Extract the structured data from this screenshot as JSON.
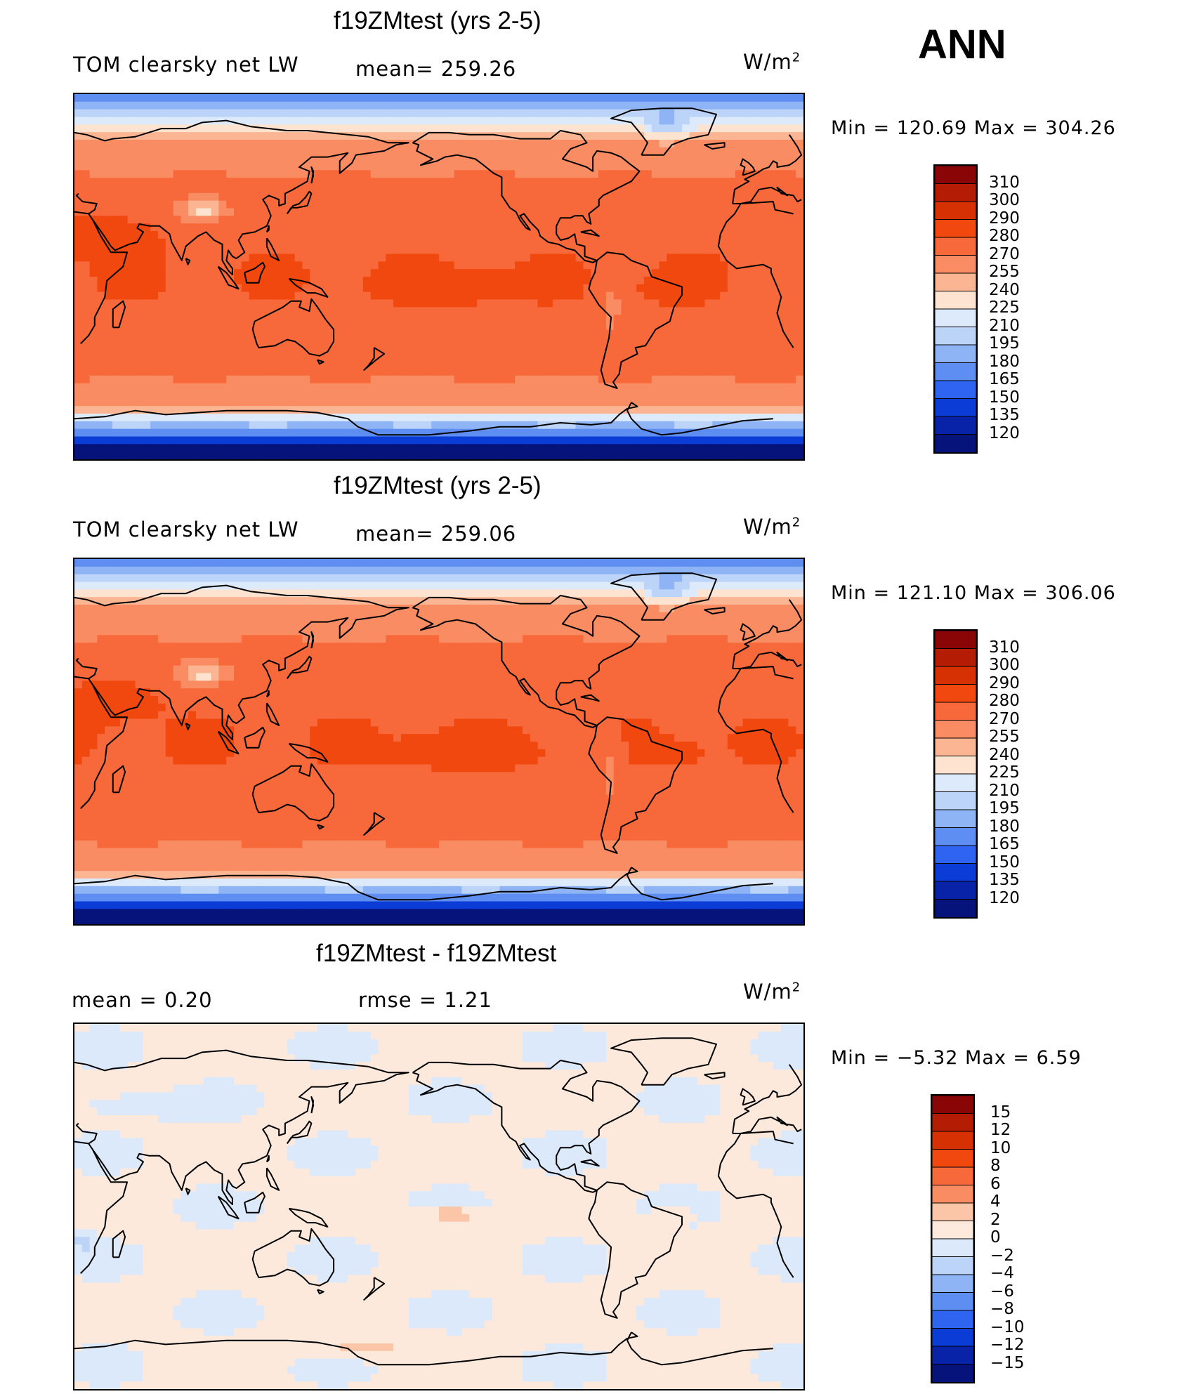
{
  "season": "ANN",
  "panels": [
    {
      "title": "f19ZMtest (yrs 2-5)",
      "left_label": "TOM clearsky net LW",
      "center_label": "mean=  259.26",
      "units_base": "W/m",
      "units_exp": "2",
      "minmax": "Min  =  120.69  Max  =  304.26",
      "palette": "abs",
      "variant": 1
    },
    {
      "title": "f19ZMtest (yrs 2-5)",
      "left_label": "TOM clearsky net LW",
      "center_label": "mean=  259.06",
      "units_base": "W/m",
      "units_exp": "2",
      "minmax": "Min  =  121.10  Max  =  306.06",
      "palette": "abs",
      "variant": 2
    },
    {
      "title": "f19ZMtest - f19ZMtest",
      "left_label": "mean  =     0.20",
      "center_label": "rmse  =     1.21",
      "units_base": "W/m",
      "units_exp": "2",
      "minmax": "Min  =    −5.32  Max  =      6.59",
      "palette": "diff",
      "variant": 3
    }
  ],
  "colorbars": {
    "abs": {
      "levels": [
        "310",
        "300",
        "290",
        "280",
        "270",
        "255",
        "240",
        "225",
        "210",
        "195",
        "180",
        "165",
        "150",
        "135",
        "120"
      ],
      "colors": [
        "#8a0606",
        "#b51c04",
        "#d63103",
        "#f0480f",
        "#f7693a",
        "#f98c62",
        "#fbb592",
        "#fde3d0",
        "#dceafb",
        "#bcd4f8",
        "#8fb4f5",
        "#5f8ef2",
        "#2f64f0",
        "#0c3cd6",
        "#0822a8",
        "#05137a"
      ]
    },
    "diff": {
      "levels": [
        "15",
        "12",
        "10",
        "8",
        "6",
        "4",
        "2",
        "0",
        "−2",
        "−4",
        "−6",
        "−8",
        "−10",
        "−12",
        "−15"
      ],
      "colors": [
        "#8a0606",
        "#b51c04",
        "#d63103",
        "#f0480f",
        "#f7693a",
        "#f98c62",
        "#fbc6a8",
        "#fde9dc",
        "#dbe9fb",
        "#bcd4f8",
        "#8fb4f5",
        "#5f8ef2",
        "#2f64f0",
        "#0c3cd6",
        "#0822a8",
        "#05137a"
      ]
    }
  }
}
